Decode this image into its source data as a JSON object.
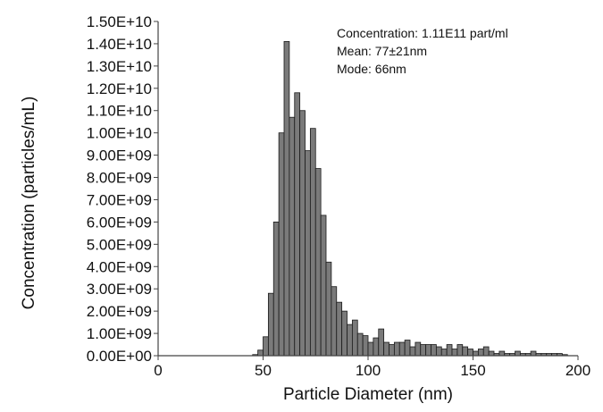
{
  "chart_data": {
    "type": "bar",
    "xlabel": "Particle Diameter (nm)",
    "ylabel": "Concentration (particles/mL)",
    "xlim": [
      0,
      200
    ],
    "ylim": [
      0,
      15000000000
    ],
    "grid": false,
    "legend": "none",
    "colors": {
      "bar_fill": "#7a7a7a",
      "bar_stroke": "#1a1a1a",
      "axis": "#444444"
    },
    "bin_width": 2.5,
    "x_ticks": [
      0,
      50,
      100,
      150,
      200
    ],
    "x_tick_labels": [
      "0",
      "50",
      "100",
      "150",
      "200"
    ],
    "y_ticks": [
      0,
      1000000000,
      2000000000,
      3000000000,
      4000000000,
      5000000000,
      6000000000,
      7000000000,
      8000000000,
      9000000000,
      10000000000,
      11000000000,
      12000000000,
      13000000000,
      14000000000,
      15000000000
    ],
    "y_tick_labels": [
      "0.00E+00",
      "1.00E+09",
      "2.00E+09",
      "3.00E+09",
      "4.00E+09",
      "5.00E+09",
      "6.00E+09",
      "7.00E+09",
      "8.00E+09",
      "9.00E+09",
      "1.00E+10",
      "1.10E+10",
      "1.20E+10",
      "1.30E+10",
      "1.40E+10",
      "1.50E+10"
    ],
    "annotations": [
      "Concentration: 1.11E11 part/ml",
      "Mean: 77±21nm",
      "Mode: 66nm"
    ],
    "x": [
      46.25,
      48.75,
      51.25,
      53.75,
      56.25,
      58.75,
      61.25,
      63.75,
      66.25,
      68.75,
      71.25,
      73.75,
      76.25,
      78.75,
      81.25,
      83.75,
      86.25,
      88.75,
      91.25,
      93.75,
      96.25,
      98.75,
      101.25,
      103.75,
      106.25,
      108.75,
      111.25,
      113.75,
      116.25,
      118.75,
      121.25,
      123.75,
      126.25,
      128.75,
      131.25,
      133.75,
      136.25,
      138.75,
      141.25,
      143.75,
      146.25,
      148.75,
      151.25,
      153.75,
      156.25,
      158.75,
      161.25,
      163.75,
      166.25,
      168.75,
      171.25,
      173.75,
      176.25,
      178.75,
      181.25,
      183.75,
      186.25,
      188.75,
      191.25,
      193.75
    ],
    "values": [
      50000000,
      250000000,
      850000000,
      2800000000,
      6000000000,
      10000000000,
      14100000000,
      10700000000,
      11800000000,
      11000000000,
      9200000000,
      10200000000,
      8400000000,
      6300000000,
      4200000000,
      3100000000,
      2400000000,
      2000000000,
      1400000000,
      1600000000,
      1000000000,
      900000000,
      600000000,
      800000000,
      1200000000,
      600000000,
      500000000,
      600000000,
      600000000,
      700000000,
      400000000,
      600000000,
      500000000,
      500000000,
      500000000,
      400000000,
      300000000,
      500000000,
      300000000,
      500000000,
      400000000,
      300000000,
      200000000,
      300000000,
      400000000,
      200000000,
      100000000,
      200000000,
      100000000,
      100000000,
      200000000,
      100000000,
      100000000,
      200000000,
      100000000,
      100000000,
      100000000,
      100000000,
      100000000,
      50000000
    ]
  }
}
